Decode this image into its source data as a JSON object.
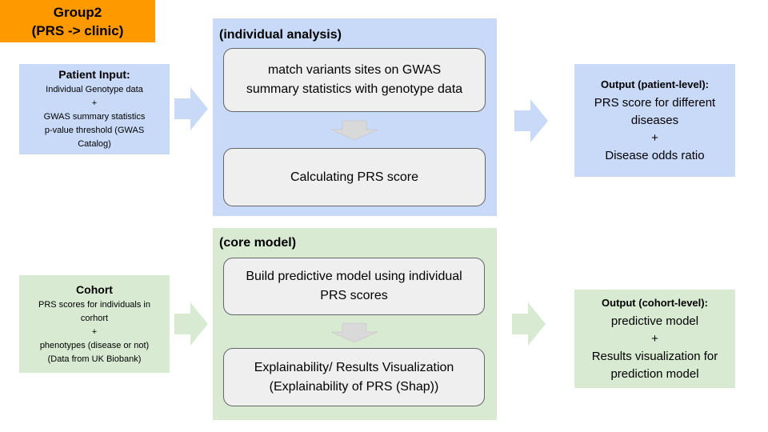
{
  "title": {
    "line1": "Group2",
    "line2": "(PRS -> clinic)"
  },
  "patient_input": {
    "heading": "Patient Input:",
    "lines": [
      "Individual Genotype data",
      "+",
      "GWAS summary statistics",
      "p-value threshold (GWAS",
      "Catalog)"
    ]
  },
  "individual_panel": {
    "label": "(individual analysis)",
    "step1": [
      "match variants sites on GWAS",
      "summary statistics with genotype data"
    ],
    "step2": [
      "Calculating PRS score"
    ]
  },
  "patient_output": {
    "heading": "Output (patient-level):",
    "lines": [
      "PRS score for different",
      "diseases",
      "+",
      "Disease odds ratio"
    ]
  },
  "cohort_input": {
    "heading": "Cohort",
    "lines": [
      "PRS scores for individuals in",
      "corhort",
      "+",
      "phenotypes (disease or not)",
      "(Data from UK Biobank)"
    ]
  },
  "core_panel": {
    "label": "(core model)",
    "step1": [
      "Build predictive model using individual",
      "PRS scores"
    ],
    "step2": [
      "Explainability/ Results Visualization",
      "(Explainability of PRS (Shap))"
    ]
  },
  "cohort_output": {
    "heading": "Output (cohort-level):",
    "lines": [
      "predictive model",
      "+",
      "Results visualization for",
      "prediction model"
    ]
  },
  "colors": {
    "orange": "#ff9900",
    "blue": "#c9daf8",
    "green": "#d9ead3",
    "step_fill": "#efefef",
    "down_arrow": "#d9d9d9"
  }
}
